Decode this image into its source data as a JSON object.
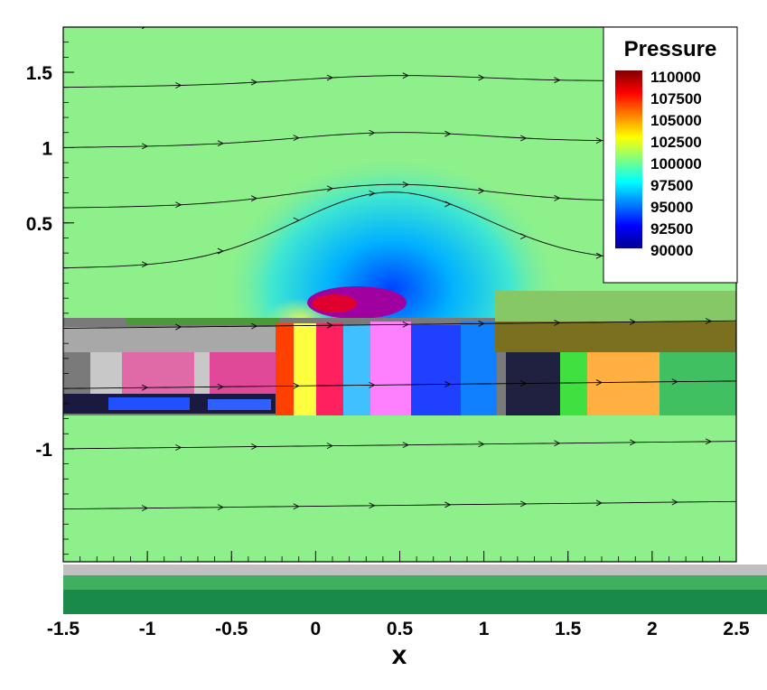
{
  "chart_data": {
    "type": "heatmap",
    "title": "",
    "xlabel": "x",
    "ylabel": "",
    "xlim": [
      -1.5,
      2.5
    ],
    "ylim": [
      -1.75,
      1.8
    ],
    "x_ticks": [
      "-1.5",
      "-1",
      "-0.5",
      "0",
      "0.5",
      "1",
      "1.5",
      "2",
      "2.5"
    ],
    "x_tick_values": [
      -1.5,
      -1,
      -0.5,
      0,
      0.5,
      1,
      1.5,
      2,
      2.5
    ],
    "y_ticks": [
      "1.5",
      "1",
      "0.5",
      "-1"
    ],
    "y_tick_values": [
      1.5,
      1,
      0.5,
      -1
    ],
    "legend": {
      "title": "Pressure",
      "placement": "top-right",
      "levels": [
        "110000",
        "107500",
        "105000",
        "102500",
        "100000",
        "97500",
        "95000",
        "92500",
        "90000"
      ],
      "level_values": [
        110000,
        107500,
        105000,
        102500,
        100000,
        97500,
        95000,
        92500,
        90000
      ]
    },
    "freestream_pressure": 100000,
    "streamline_y_starts": [
      1.8,
      1.4,
      1.0,
      0.6,
      0.2,
      -0.2,
      -0.6,
      -1.0,
      -1.4
    ],
    "low_pressure_center": {
      "x": 0.45,
      "y": 0.2,
      "value": 92000
    },
    "colors": {
      "background": "#8ef08a",
      "c90000": "#00008f",
      "c92500": "#0000ff",
      "c95000": "#0080ff",
      "c97500": "#00ffff",
      "c100000": "#80ff80",
      "c102500": "#ffff00",
      "c105000": "#ff8000",
      "c107500": "#ff0000",
      "c110000": "#800000"
    }
  }
}
